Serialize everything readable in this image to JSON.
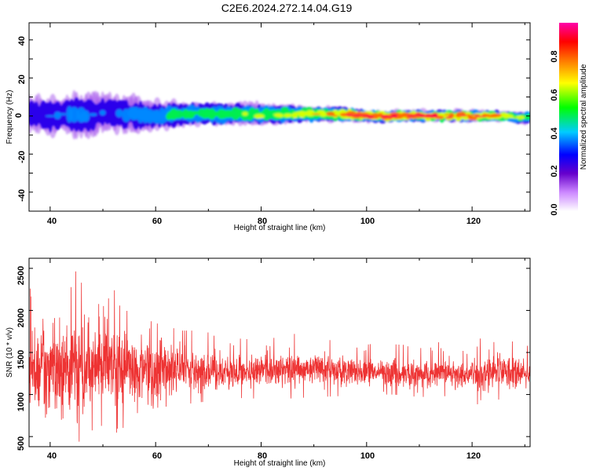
{
  "title": "C2E6.2024.272.14.04.G19",
  "chart_data": [
    {
      "type": "heatmap",
      "xlabel": "Height of straight line (km)",
      "ylabel": "Frequency (Hz)",
      "xlim": [
        36,
        131
      ],
      "ylim": [
        -50,
        49
      ],
      "xticks": [
        "40",
        "60",
        "80",
        "100",
        "120"
      ],
      "yticks": [
        "40",
        "20",
        "0",
        "-20",
        "-40"
      ],
      "colorbar": {
        "label": "Normalized spectral amplitude",
        "range": [
          0,
          0.98
        ],
        "ticks": [
          "0.0",
          "0.2",
          "0.4",
          "0.6",
          "0.8"
        ]
      },
      "series": [
        {
          "x": [
            37,
            40,
            43,
            46,
            50,
            55,
            60,
            65,
            70,
            75,
            80,
            85,
            90,
            95,
            100,
            105,
            110,
            115,
            120,
            125,
            130
          ],
          "center_freq": [
            1,
            0,
            1,
            0,
            2,
            1,
            0,
            1,
            1,
            1,
            1,
            1,
            1,
            1,
            0,
            0,
            0,
            0,
            0,
            0,
            -1
          ],
          "spread_hz": [
            12,
            12,
            12,
            13,
            12,
            10,
            9,
            7,
            6,
            6,
            6,
            5,
            4,
            4,
            3,
            3,
            3,
            3,
            3,
            3,
            3
          ],
          "peak_amplitude": [
            0.3,
            0.3,
            0.35,
            0.35,
            0.3,
            0.35,
            0.4,
            0.5,
            0.55,
            0.55,
            0.6,
            0.65,
            0.7,
            0.8,
            0.95,
            0.95,
            0.9,
            0.9,
            0.85,
            0.75,
            0.6
          ]
        }
      ]
    },
    {
      "type": "line",
      "xlabel": "Height of straight line (km)",
      "ylabel": "SNR (10 * v/v)",
      "xlim": [
        36,
        131
      ],
      "ylim": [
        380,
        2620
      ],
      "xticks": [
        "40",
        "60",
        "80",
        "100",
        "120"
      ],
      "yticks": [
        "2500",
        "2000",
        "1500",
        "1000",
        "500"
      ],
      "color": "#ee3333",
      "series": [
        {
          "x": [
            37,
            40,
            44,
            47,
            50,
            53,
            56,
            60,
            65,
            70,
            75,
            80,
            85,
            90,
            95,
            100,
            105,
            110,
            115,
            120,
            125,
            130
          ],
          "mean": [
            1320,
            1300,
            1300,
            1320,
            1330,
            1300,
            1300,
            1310,
            1300,
            1280,
            1280,
            1270,
            1290,
            1300,
            1290,
            1280,
            1250,
            1250,
            1260,
            1230,
            1260,
            1250
          ],
          "amplitude": [
            520,
            480,
            500,
            460,
            420,
            380,
            340,
            300,
            250,
            200,
            180,
            170,
            180,
            170,
            160,
            140,
            150,
            140,
            150,
            170,
            160,
            150
          ],
          "max": [
            2260,
            2380,
            2600,
            2180,
            2040,
            2330,
            1950,
            1850,
            1760,
            1760,
            1720,
            1680,
            1720,
            1720,
            1600,
            1630,
            1670,
            1620,
            1650,
            1690,
            1620,
            1640
          ],
          "min": [
            680,
            560,
            470,
            400,
            650,
            530,
            770,
            840,
            880,
            920,
            960,
            950,
            950,
            970,
            980,
            1000,
            1000,
            970,
            980,
            870,
            940,
            970
          ]
        }
      ]
    }
  ]
}
